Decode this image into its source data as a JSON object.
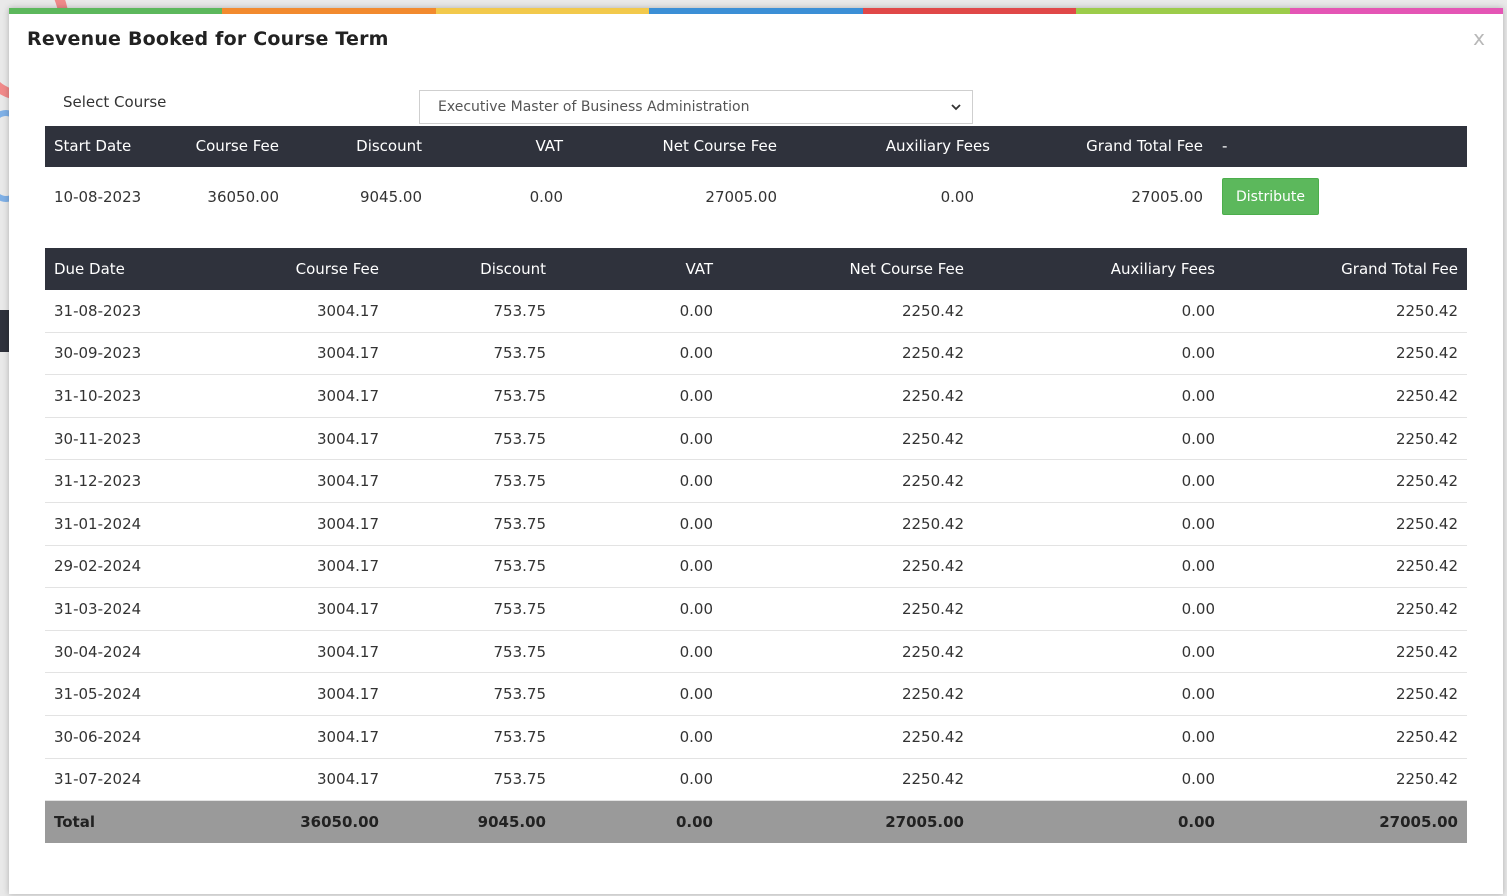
{
  "modal": {
    "title": "Revenue Booked for Course Term",
    "close_label": "x",
    "rainbow_colors": [
      "#5cb85c",
      "#f28a2e",
      "#f2c94c",
      "#3b8fd6",
      "#e04848",
      "#9ccc4a",
      "#e455b5"
    ]
  },
  "course": {
    "label": "Select Course",
    "selected": "Executive Master of Business Administration"
  },
  "summary": {
    "headers": [
      "Start Date",
      "Course Fee",
      "Discount",
      "VAT",
      "Net Course Fee",
      "Auxiliary Fees",
      "Grand Total Fee",
      "-"
    ],
    "row": [
      "10-08-2023",
      "36050.00",
      "9045.00",
      "0.00",
      "27005.00",
      "0.00",
      "27005.00"
    ],
    "action_label": "Distribute"
  },
  "schedule": {
    "headers": [
      "Due Date",
      "Course Fee",
      "Discount",
      "VAT",
      "Net Course Fee",
      "Auxiliary Fees",
      "Grand Total Fee"
    ],
    "rows": [
      [
        "31-08-2023",
        "3004.17",
        "753.75",
        "0.00",
        "2250.42",
        "0.00",
        "2250.42"
      ],
      [
        "30-09-2023",
        "3004.17",
        "753.75",
        "0.00",
        "2250.42",
        "0.00",
        "2250.42"
      ],
      [
        "31-10-2023",
        "3004.17",
        "753.75",
        "0.00",
        "2250.42",
        "0.00",
        "2250.42"
      ],
      [
        "30-11-2023",
        "3004.17",
        "753.75",
        "0.00",
        "2250.42",
        "0.00",
        "2250.42"
      ],
      [
        "31-12-2023",
        "3004.17",
        "753.75",
        "0.00",
        "2250.42",
        "0.00",
        "2250.42"
      ],
      [
        "31-01-2024",
        "3004.17",
        "753.75",
        "0.00",
        "2250.42",
        "0.00",
        "2250.42"
      ],
      [
        "29-02-2024",
        "3004.17",
        "753.75",
        "0.00",
        "2250.42",
        "0.00",
        "2250.42"
      ],
      [
        "31-03-2024",
        "3004.17",
        "753.75",
        "0.00",
        "2250.42",
        "0.00",
        "2250.42"
      ],
      [
        "30-04-2024",
        "3004.17",
        "753.75",
        "0.00",
        "2250.42",
        "0.00",
        "2250.42"
      ],
      [
        "31-05-2024",
        "3004.17",
        "753.75",
        "0.00",
        "2250.42",
        "0.00",
        "2250.42"
      ],
      [
        "30-06-2024",
        "3004.17",
        "753.75",
        "0.00",
        "2250.42",
        "0.00",
        "2250.42"
      ],
      [
        "31-07-2024",
        "3004.17",
        "753.75",
        "0.00",
        "2250.42",
        "0.00",
        "2250.42"
      ]
    ],
    "total": [
      "Total",
      "36050.00",
      "9045.00",
      "0.00",
      "27005.00",
      "0.00",
      "27005.00"
    ]
  }
}
